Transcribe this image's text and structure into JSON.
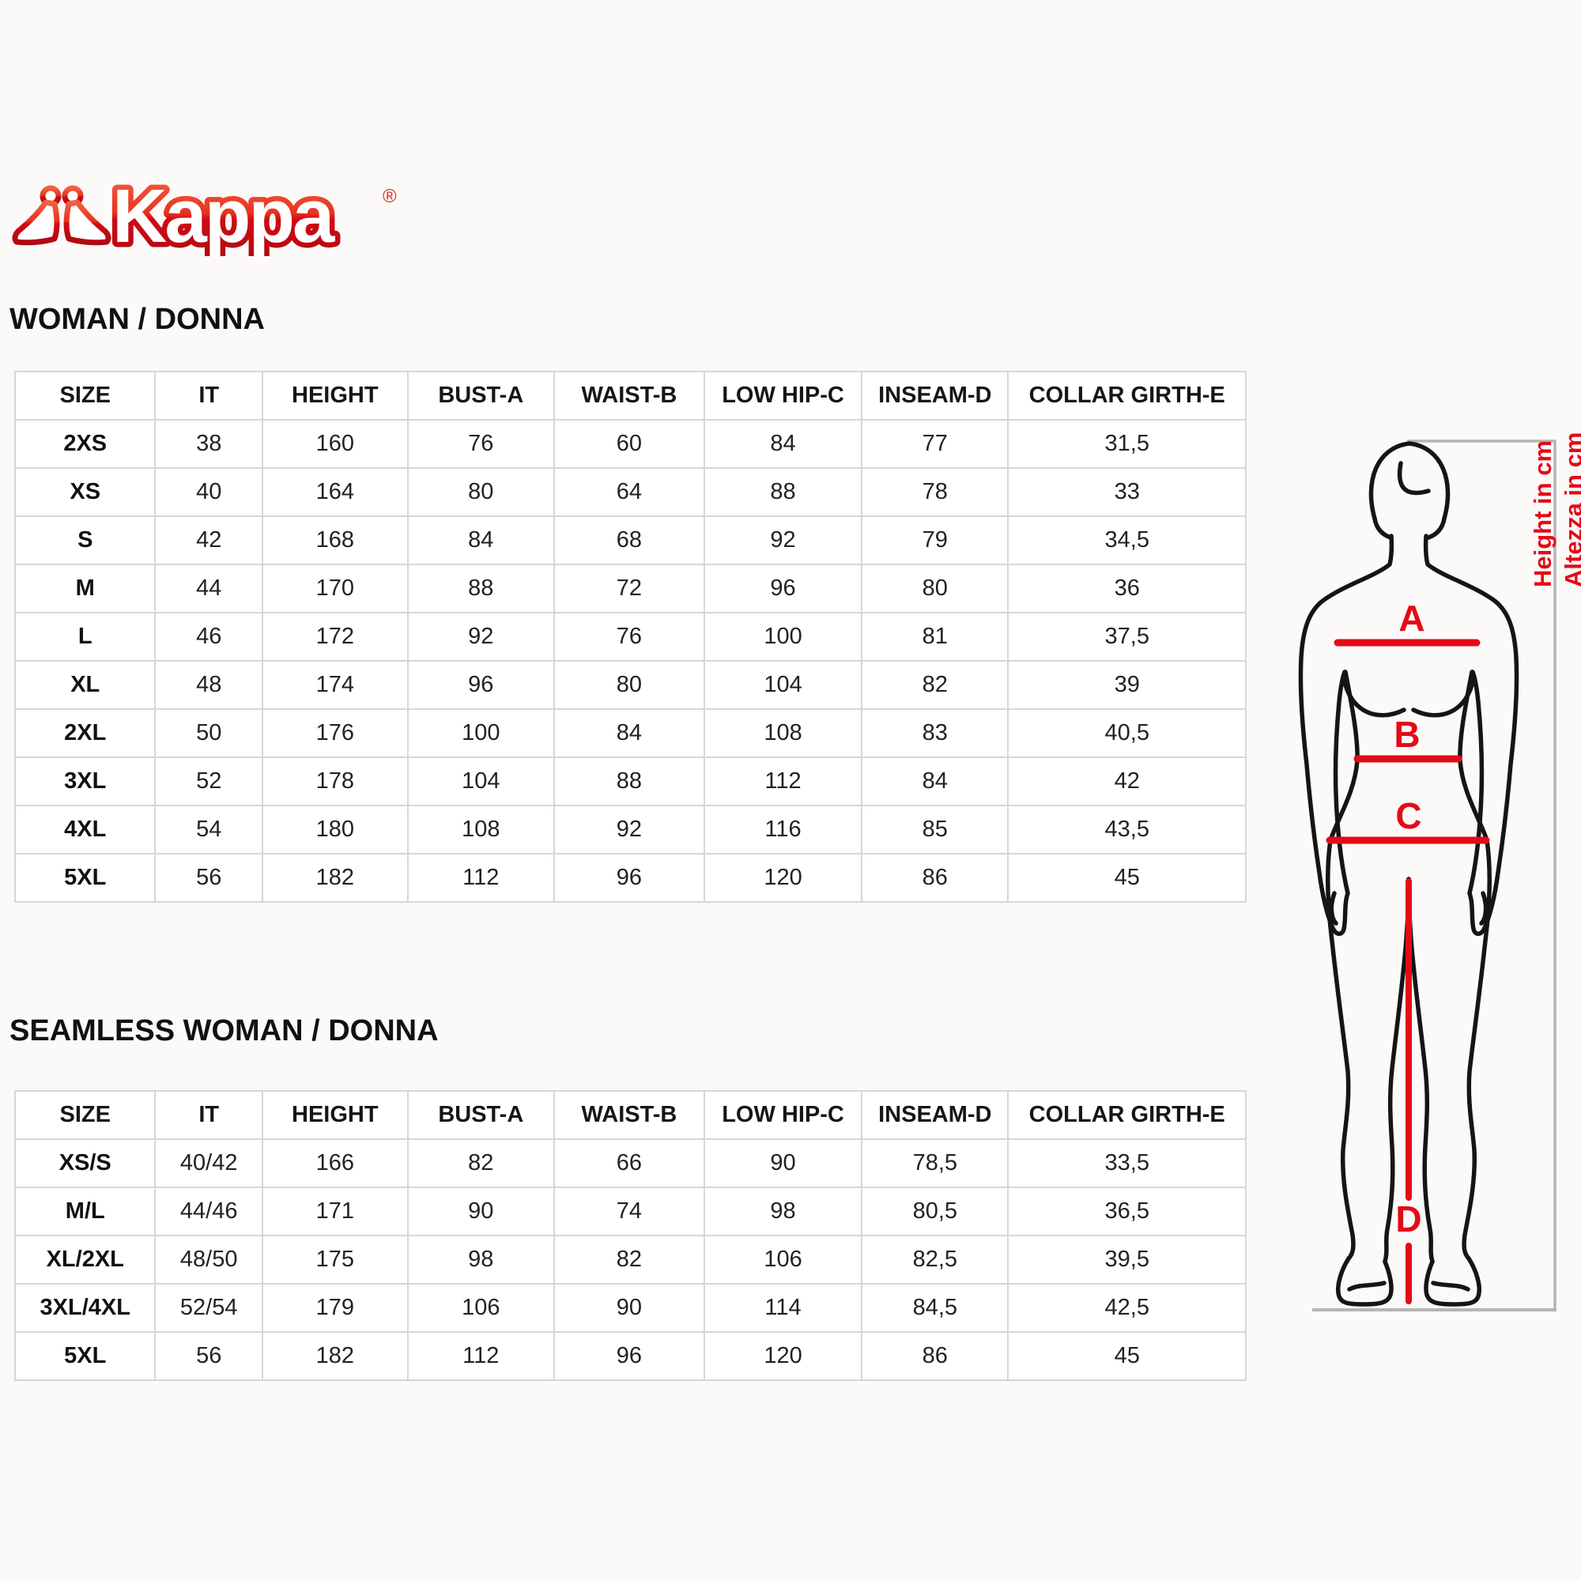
{
  "brand": {
    "name": "Kappa",
    "registered": "®",
    "red": "#e30b17"
  },
  "sections": [
    {
      "heading": "WOMAN / DONNA",
      "table": {
        "headers": [
          "SIZE",
          "IT",
          "HEIGHT",
          "BUST-A",
          "WAIST-B",
          "LOW HIP-C",
          "INSEAM-D",
          "COLLAR GIRTH-E"
        ],
        "rows": [
          [
            "2XS",
            "38",
            "160",
            "76",
            "60",
            "84",
            "77",
            "31,5"
          ],
          [
            "XS",
            "40",
            "164",
            "80",
            "64",
            "88",
            "78",
            "33"
          ],
          [
            "S",
            "42",
            "168",
            "84",
            "68",
            "92",
            "79",
            "34,5"
          ],
          [
            "M",
            "44",
            "170",
            "88",
            "72",
            "96",
            "80",
            "36"
          ],
          [
            "L",
            "46",
            "172",
            "92",
            "76",
            "100",
            "81",
            "37,5"
          ],
          [
            "XL",
            "48",
            "174",
            "96",
            "80",
            "104",
            "82",
            "39"
          ],
          [
            "2XL",
            "50",
            "176",
            "100",
            "84",
            "108",
            "83",
            "40,5"
          ],
          [
            "3XL",
            "52",
            "178",
            "104",
            "88",
            "112",
            "84",
            "42"
          ],
          [
            "4XL",
            "54",
            "180",
            "108",
            "92",
            "116",
            "85",
            "43,5"
          ],
          [
            "5XL",
            "56",
            "182",
            "112",
            "96",
            "120",
            "86",
            "45"
          ]
        ]
      }
    },
    {
      "heading": "SEAMLESS WOMAN / DONNA",
      "table": {
        "headers": [
          "SIZE",
          "IT",
          "HEIGHT",
          "BUST-A",
          "WAIST-B",
          "LOW HIP-C",
          "INSEAM-D",
          "COLLAR GIRTH-E"
        ],
        "rows": [
          [
            "XS/S",
            "40/42",
            "166",
            "82",
            "66",
            "90",
            "78,5",
            "33,5"
          ],
          [
            "M/L",
            "44/46",
            "171",
            "90",
            "74",
            "98",
            "80,5",
            "36,5"
          ],
          [
            "XL/2XL",
            "48/50",
            "175",
            "98",
            "82",
            "106",
            "82,5",
            "39,5"
          ],
          [
            "3XL/4XL",
            "52/54",
            "179",
            "106",
            "90",
            "114",
            "84,5",
            "42,5"
          ],
          [
            "5XL",
            "56",
            "182",
            "112",
            "96",
            "120",
            "86",
            "45"
          ]
        ]
      }
    }
  ],
  "figure": {
    "measure_labels": {
      "bust": "A",
      "waist": "B",
      "low_hip": "C",
      "inseam": "D"
    },
    "height_caption_en": "Height in cm",
    "height_caption_it": "Altezza in cm",
    "colors": {
      "measure": "#e30b17",
      "bracket": "#b5b5b5",
      "outline": "#151515"
    }
  }
}
